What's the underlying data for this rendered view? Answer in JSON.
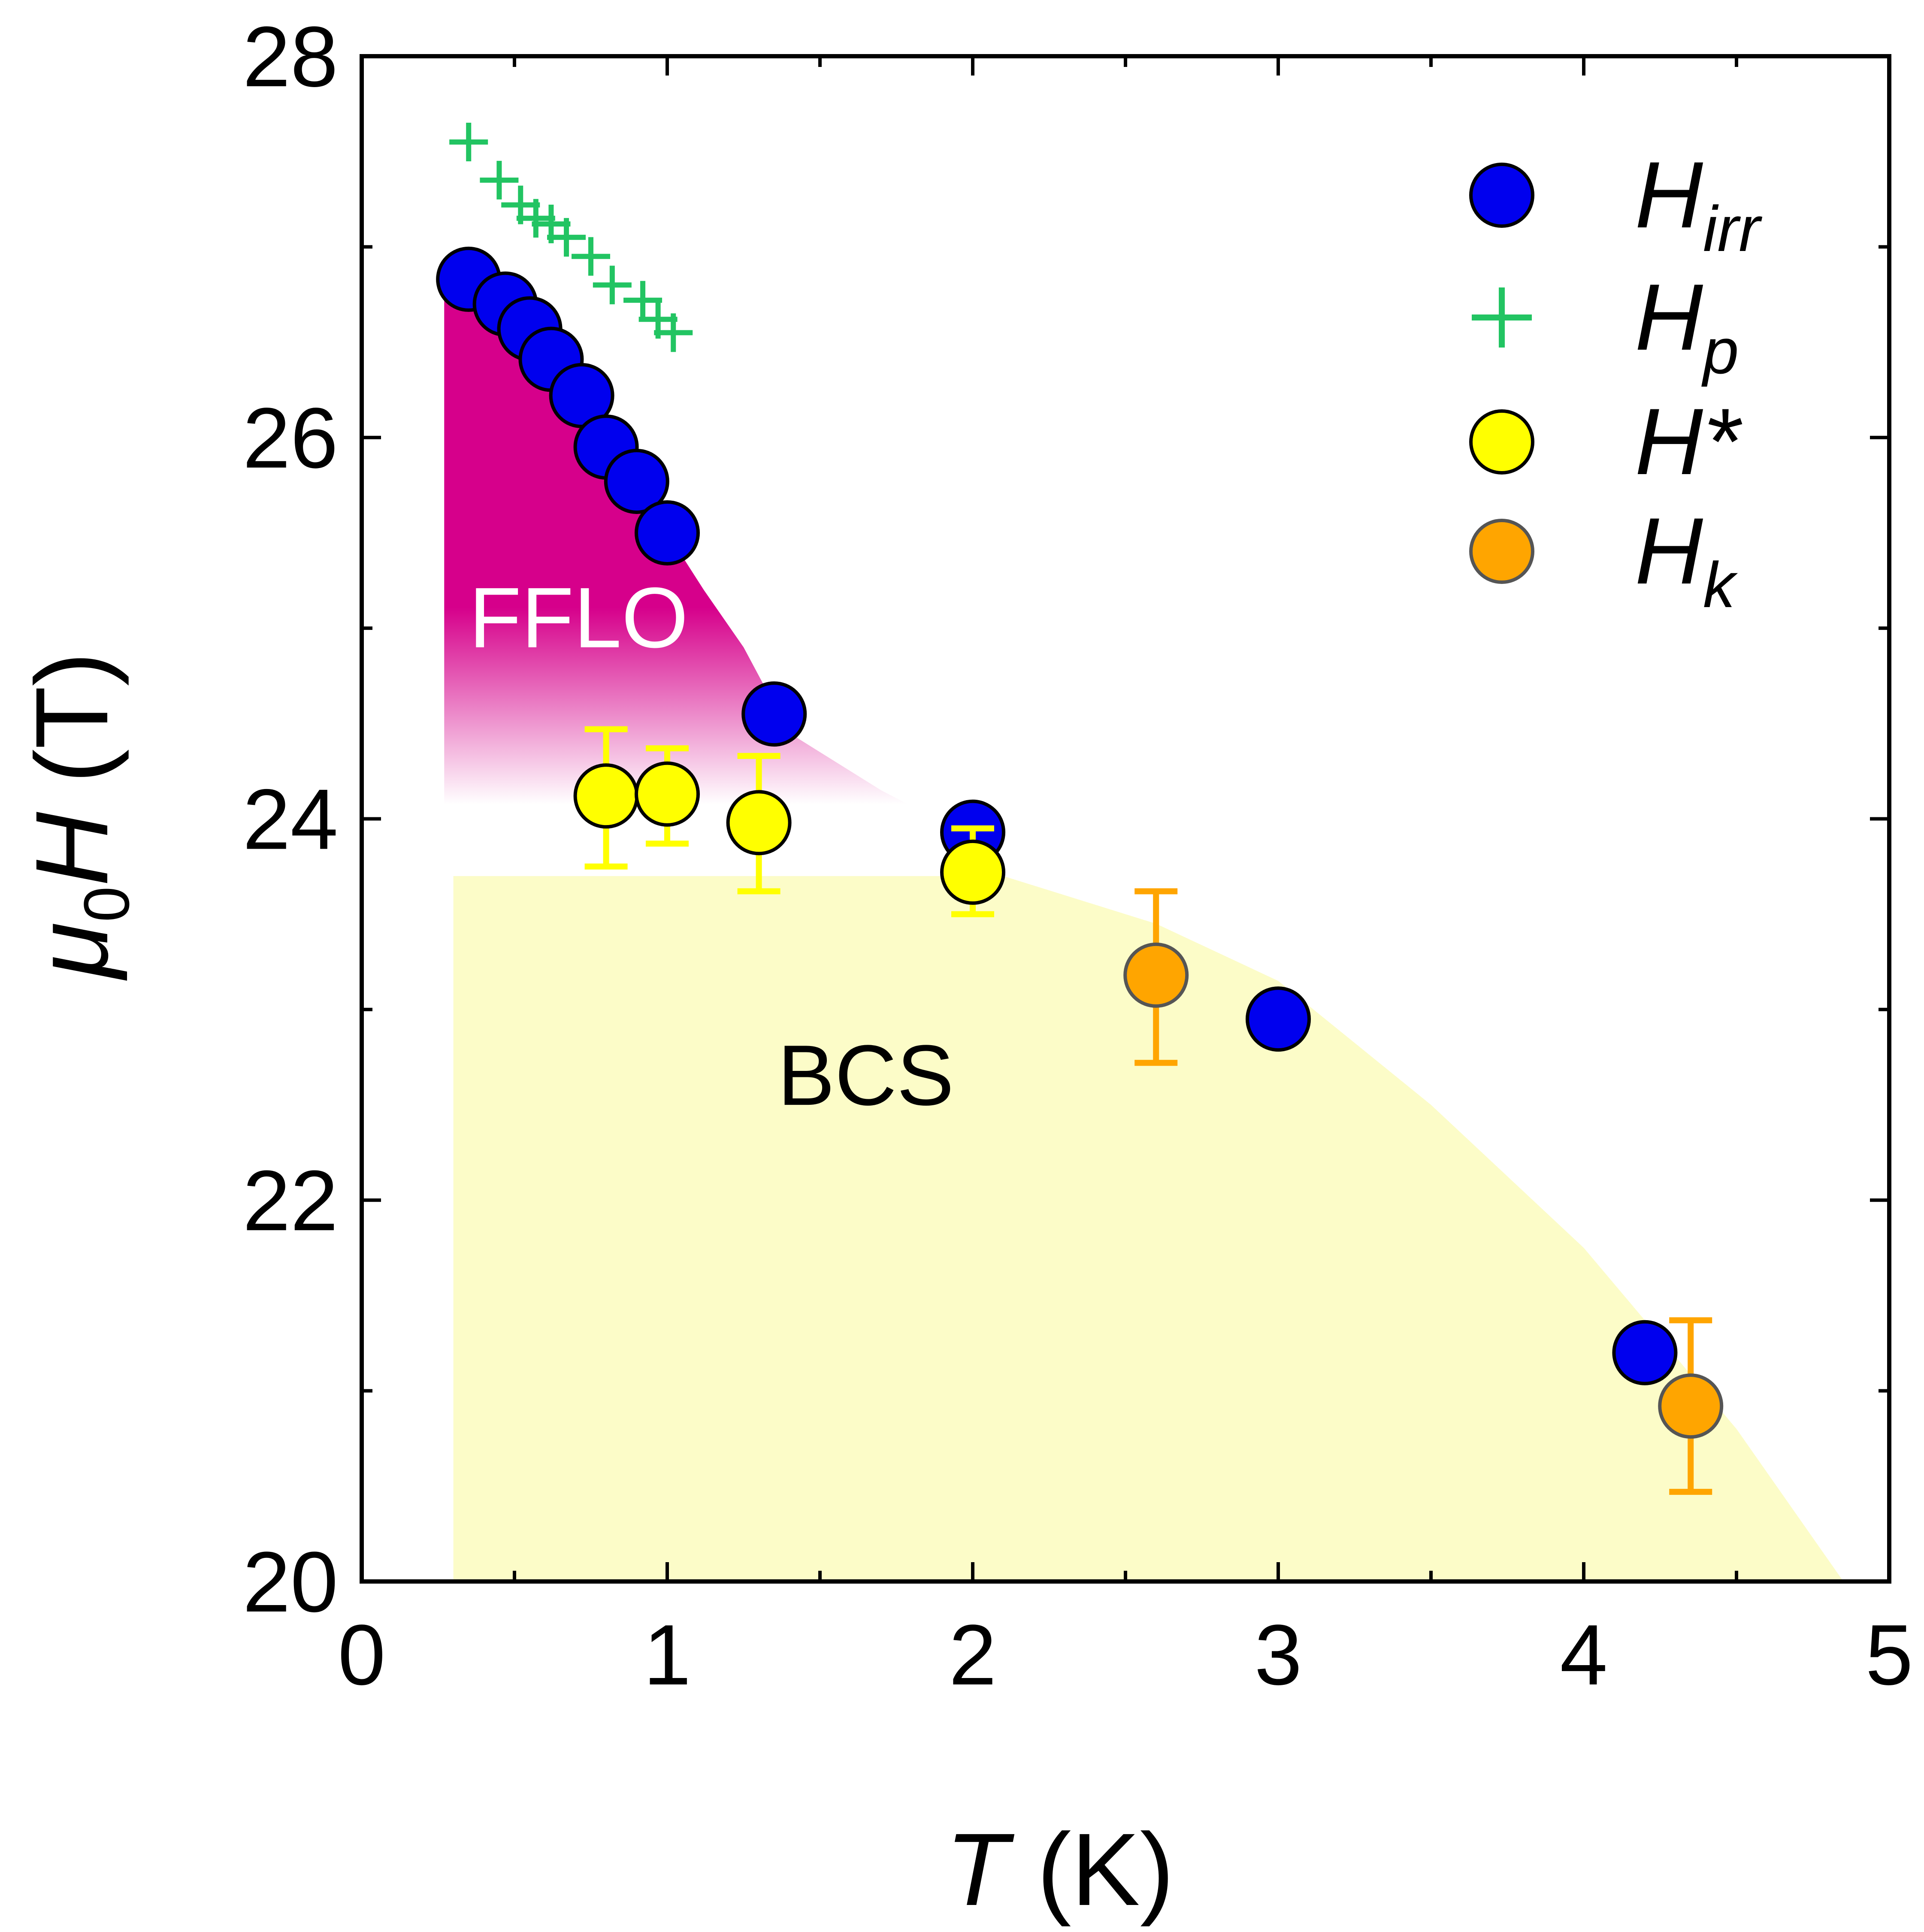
{
  "chart_data": {
    "type": "scatter",
    "xlabel": {
      "symbol": "T",
      "unit": " (K)"
    },
    "ylabel": {
      "mu": "μ",
      "sub": "0",
      "symbol": "H",
      "unit": " (T)"
    },
    "xlim": [
      0,
      5
    ],
    "ylim": [
      20,
      28
    ],
    "xticks": [
      0,
      1,
      2,
      3,
      4,
      5
    ],
    "yticks": [
      20,
      22,
      24,
      26,
      28
    ],
    "x_minor_step": 0.5,
    "y_minor_step": 1,
    "grid": false,
    "legend_position": "top-right",
    "regions": [
      {
        "label": "FFLO",
        "color": "#d6008b",
        "label_color": "#ffffff",
        "boundary": [
          [
            0.27,
            26.75
          ],
          [
            0.35,
            26.83
          ],
          [
            0.48,
            26.69
          ],
          [
            0.57,
            26.55
          ],
          [
            0.65,
            26.4
          ],
          [
            0.75,
            26.22
          ],
          [
            0.8,
            25.95
          ],
          [
            0.9,
            25.75
          ],
          [
            1.0,
            25.5
          ],
          [
            1.12,
            25.2
          ],
          [
            1.25,
            24.9
          ],
          [
            1.4,
            24.45
          ],
          [
            1.7,
            24.15
          ],
          [
            2.0,
            23.9
          ],
          [
            2.2,
            23.75
          ]
        ],
        "text_pos": [
          0.71,
          24.9
        ]
      },
      {
        "label": "BCS",
        "color": "#fcfcc8",
        "label_color": "#000000",
        "boundary": [
          [
            0.3,
            24.05
          ],
          [
            1.0,
            24.0
          ],
          [
            2.0,
            23.75
          ],
          [
            2.6,
            23.45
          ],
          [
            3.0,
            23.15
          ],
          [
            3.5,
            22.5
          ],
          [
            4.0,
            21.75
          ],
          [
            4.5,
            20.8
          ],
          [
            4.85,
            20.0
          ]
        ],
        "text_pos": [
          1.65,
          22.5
        ]
      }
    ],
    "series": [
      {
        "name": "H",
        "name_sub": "irr",
        "name_sup": "",
        "marker": "circle",
        "color": "#0000ee",
        "edge": "#000000",
        "points": [
          [
            0.35,
            26.83
          ],
          [
            0.47,
            26.7
          ],
          [
            0.55,
            26.57
          ],
          [
            0.62,
            26.41
          ],
          [
            0.72,
            26.22
          ],
          [
            0.8,
            25.95
          ],
          [
            0.9,
            25.77
          ],
          [
            1.0,
            25.5
          ],
          [
            1.35,
            24.55
          ],
          [
            2.0,
            23.93
          ],
          [
            3.0,
            22.95
          ],
          [
            4.2,
            21.2
          ]
        ]
      },
      {
        "name": "H",
        "name_sub": "p",
        "name_sup": "",
        "marker": "plus",
        "color": "#22c462",
        "points": [
          [
            0.35,
            27.55
          ],
          [
            0.45,
            27.35
          ],
          [
            0.52,
            27.22
          ],
          [
            0.57,
            27.15
          ],
          [
            0.62,
            27.12
          ],
          [
            0.67,
            27.05
          ],
          [
            0.75,
            26.95
          ],
          [
            0.82,
            26.8
          ],
          [
            0.92,
            26.72
          ],
          [
            0.97,
            26.62
          ],
          [
            1.02,
            26.55
          ]
        ]
      },
      {
        "name": "H",
        "name_sub": "",
        "name_sup": "*",
        "marker": "circle",
        "color": "#ffff00",
        "edge": "#000000",
        "points": [
          [
            0.8,
            24.12
          ],
          [
            1.0,
            24.13
          ],
          [
            1.3,
            23.98
          ],
          [
            2.0,
            23.72
          ]
        ],
        "errors": [
          [
            0.8,
            23.75,
            24.47
          ],
          [
            1.0,
            23.87,
            24.37
          ],
          [
            1.3,
            23.62,
            24.33
          ],
          [
            2.0,
            23.5,
            23.95
          ]
        ]
      },
      {
        "name": "H",
        "name_sub": "k",
        "name_sup": "",
        "marker": "circle",
        "color": "#ffa500",
        "edge": "#555555",
        "points": [
          [
            2.6,
            23.18
          ],
          [
            4.35,
            20.92
          ]
        ],
        "errors": [
          [
            2.6,
            22.72,
            23.62
          ],
          [
            4.35,
            20.47,
            21.37
          ]
        ]
      }
    ]
  }
}
